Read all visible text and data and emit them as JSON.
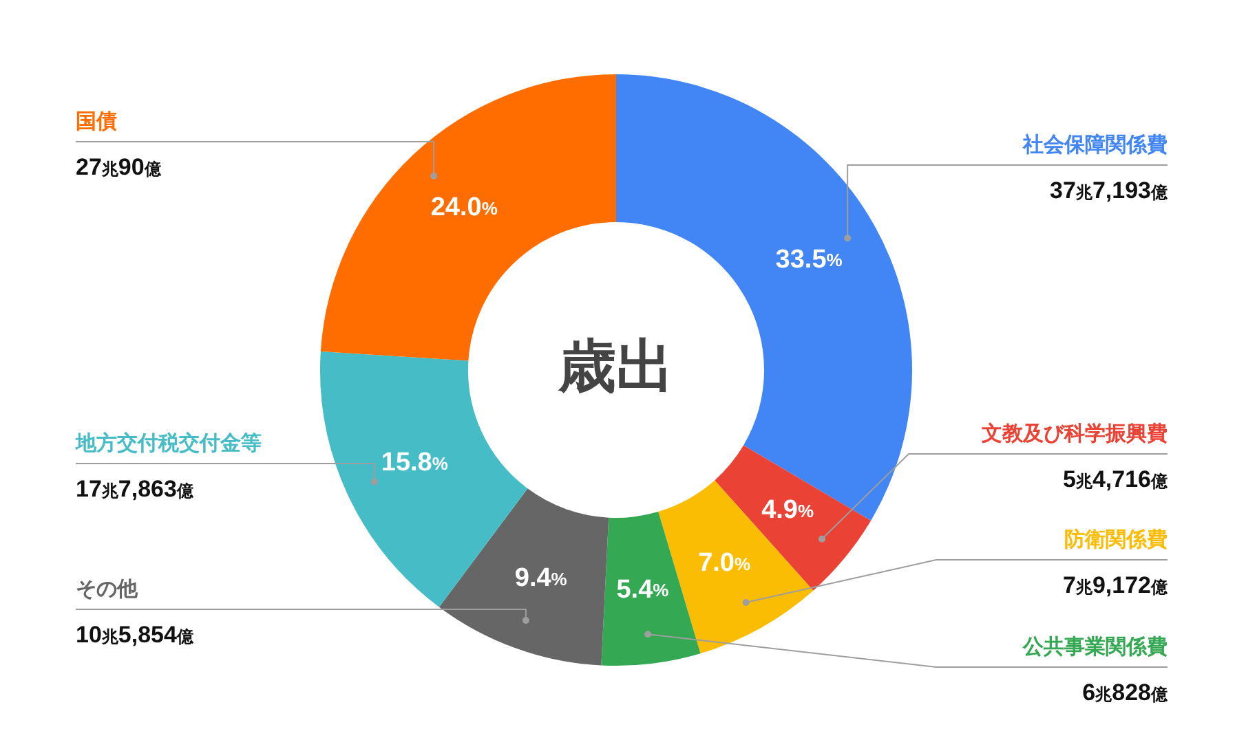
{
  "chart_data": {
    "type": "donut",
    "title": "歳出",
    "categories": [
      "社会保障関係費",
      "文教及び科学振興費",
      "防衛関係費",
      "公共事業関係費",
      "その他",
      "地方交付税交付金等",
      "国債"
    ],
    "values": [
      33.5,
      4.9,
      7.0,
      5.4,
      9.4,
      15.8,
      24.0
    ],
    "colors": [
      "#4285f4",
      "#ea4335",
      "#fbbc04",
      "#34a853",
      "#666666",
      "#46bdc6",
      "#ff6d01"
    ],
    "value_labels": [
      "33.5%",
      "4.9%",
      "7.0%",
      "5.4%",
      "9.4%",
      "15.8%",
      "24.0%"
    ],
    "annotations": [
      "37兆7,193億",
      "5兆4,716億",
      "7兆9,172億",
      "6兆828億",
      "10兆5,854億",
      "17兆7,863億",
      "27兆90億"
    ],
    "legend": false
  }
}
